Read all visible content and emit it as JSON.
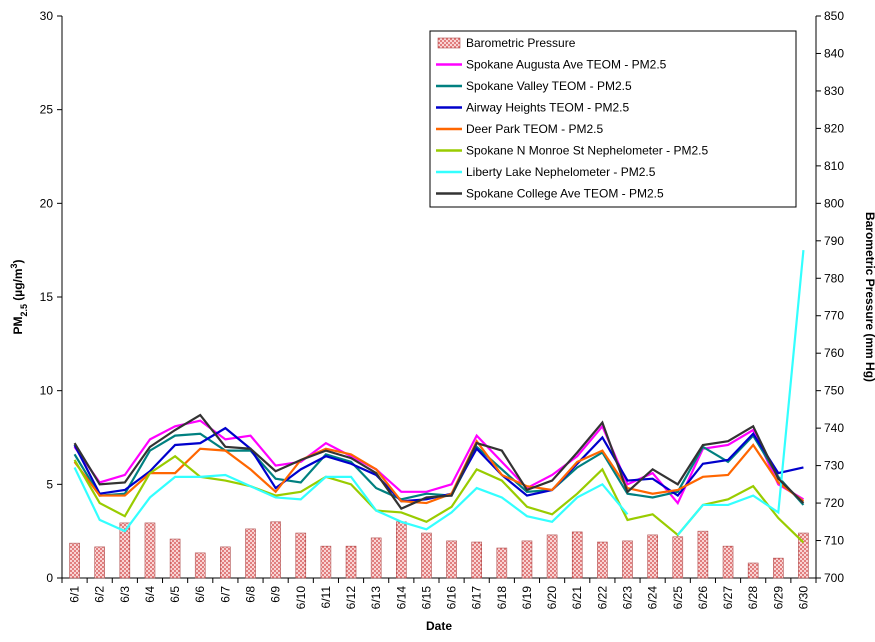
{
  "chart_data": {
    "type": "combo",
    "xlabel": "Date",
    "ylabel": [
      "PM",
      "2.5",
      " (µg/m",
      "3",
      ")"
    ],
    "y2label": "Barometric Pressure (mm Hg)",
    "categories": [
      "6/1",
      "6/2",
      "6/3",
      "6/4",
      "6/5",
      "6/6",
      "6/7",
      "6/8",
      "6/9",
      "6/10",
      "6/11",
      "6/12",
      "6/13",
      "6/14",
      "6/15",
      "6/16",
      "6/17",
      "6/18",
      "6/19",
      "6/20",
      "6/21",
      "6/22",
      "6/23",
      "6/24",
      "6/25",
      "6/26",
      "6/27",
      "6/28",
      "6/29",
      "6/30"
    ],
    "ylim": [
      0,
      30
    ],
    "yticks": [
      0,
      5,
      10,
      15,
      20,
      25,
      30
    ],
    "y2lim": [
      700,
      850
    ],
    "y2ticks": [
      700,
      710,
      720,
      730,
      740,
      750,
      760,
      770,
      780,
      790,
      800,
      810,
      820,
      830,
      840,
      850
    ],
    "legend": "upper right",
    "series": [
      {
        "name": "Barometric Pressure",
        "type": "bar",
        "axis": "y2",
        "color": "#f4b8b8",
        "values": [
          709.3,
          708.3,
          714.7,
          714.7,
          710.4,
          706.7,
          708.3,
          713.1,
          715,
          712,
          708.5,
          708.5,
          710.7,
          715,
          712,
          709.9,
          709.6,
          708,
          709.9,
          711.5,
          712.3,
          709.6,
          709.9,
          711.5,
          711,
          712.5,
          708.5,
          704,
          705.3,
          712
        ]
      },
      {
        "name": "Spokane Augusta Ave TEOM - PM2.5",
        "type": "line",
        "color": "#ff00ff",
        "values": [
          7.0,
          5.1,
          5.5,
          7.4,
          8.1,
          8.4,
          7.4,
          7.6,
          6.0,
          6.2,
          7.2,
          6.5,
          5.8,
          4.6,
          4.6,
          5.0,
          7.6,
          6.2,
          4.8,
          5.5,
          6.5,
          8.1,
          5.0,
          5.6,
          4.0,
          6.9,
          7.1,
          7.9,
          5.0,
          4.2
        ]
      },
      {
        "name": "Spokane Valley TEOM - PM2.5",
        "type": "line",
        "color": "#008080",
        "values": [
          6.6,
          4.4,
          4.5,
          6.8,
          7.6,
          7.7,
          6.8,
          6.8,
          5.3,
          5.1,
          6.6,
          6.2,
          4.8,
          4.2,
          4.5,
          4.4,
          7.0,
          5.8,
          4.6,
          4.7,
          5.9,
          6.7,
          4.5,
          4.3,
          4.6,
          7.0,
          6.2,
          7.6,
          5.4,
          3.9
        ]
      },
      {
        "name": "Airway Heights TEOM - PM2.5",
        "type": "line",
        "color": "#0000cc",
        "values": [
          7.1,
          4.5,
          4.7,
          5.7,
          7.1,
          7.2,
          8.0,
          6.9,
          4.8,
          5.8,
          6.5,
          6.1,
          5.5,
          4.1,
          4.2,
          4.5,
          6.9,
          5.5,
          4.4,
          4.7,
          6.1,
          7.5,
          5.2,
          5.3,
          4.4,
          6.1,
          6.3,
          7.7,
          5.6,
          5.9
        ]
      },
      {
        "name": "Deer Park TEOM - PM2.5",
        "type": "line",
        "color": "#ff6600",
        "values": [
          6.2,
          4.4,
          4.4,
          5.6,
          5.6,
          6.9,
          6.8,
          5.8,
          4.6,
          6.3,
          6.9,
          6.6,
          5.8,
          4.1,
          4.0,
          4.5,
          7.3,
          5.5,
          4.9,
          4.7,
          6.2,
          6.8,
          4.8,
          4.5,
          4.7,
          5.4,
          5.5,
          7.1,
          5.1,
          4.1
        ]
      },
      {
        "name": "Spokane N Monroe St Nephelometer - PM2.5",
        "type": "line",
        "color": "#99cc00",
        "values": [
          6.3,
          4.0,
          3.3,
          5.6,
          6.5,
          5.4,
          5.2,
          4.9,
          4.4,
          4.6,
          5.4,
          5.0,
          3.6,
          3.5,
          3.0,
          3.8,
          5.8,
          5.2,
          3.8,
          3.4,
          4.5,
          5.8,
          3.1,
          3.4,
          2.3,
          3.9,
          4.2,
          4.9,
          3.2,
          1.9
        ]
      },
      {
        "name": "Liberty Lake Nephelometer - PM2.5",
        "type": "line",
        "color": "#33ffff",
        "values": [
          5.9,
          3.1,
          2.5,
          4.3,
          5.4,
          5.4,
          5.5,
          4.9,
          4.3,
          4.2,
          5.4,
          5.4,
          3.6,
          3.0,
          2.6,
          3.5,
          4.8,
          4.3,
          3.3,
          3.0,
          4.3,
          5.0,
          3.4,
          null,
          2.3,
          3.9,
          3.9,
          4.4,
          3.5,
          17.5
        ]
      },
      {
        "name": "Spokane College Ave TEOM - PM2.5",
        "type": "line",
        "color": "#333333",
        "values": [
          7.2,
          5.0,
          5.1,
          7.0,
          7.9,
          8.7,
          7.0,
          6.9,
          5.7,
          6.3,
          6.8,
          6.4,
          5.6,
          3.7,
          4.3,
          4.4,
          7.2,
          6.8,
          4.7,
          5.2,
          6.7,
          8.3,
          4.6,
          5.8,
          5.0,
          7.1,
          7.3,
          8.1,
          5.3,
          4.0
        ]
      }
    ]
  }
}
